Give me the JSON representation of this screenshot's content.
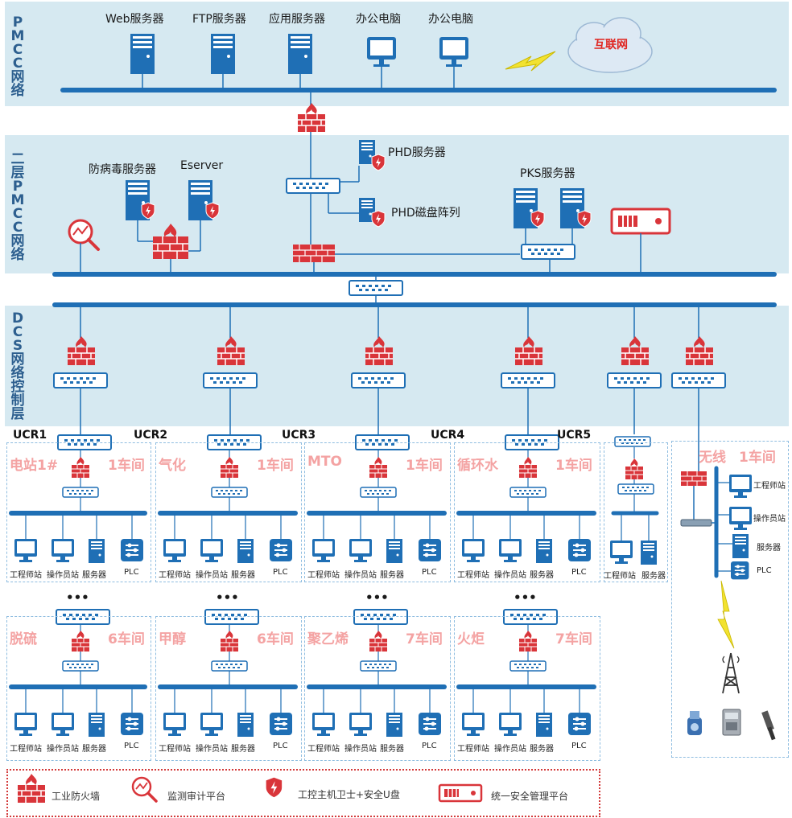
{
  "zones": {
    "pmcc": "PMCC网络",
    "l2pmcc": "二层PMCC网络",
    "dcs": "DCS网络控制层"
  },
  "top": {
    "servers": [
      "Web服务器",
      "FTP服务器",
      "应用服务器"
    ],
    "pcs": [
      "办公电脑",
      "办公电脑"
    ],
    "internet": "互联网"
  },
  "mid": {
    "antivirus": "防病毒服务器",
    "eserver": "Eserver",
    "phd_server": "PHD服务器",
    "phd_disk": "PHD磁盘阵列",
    "pks": "PKS服务器"
  },
  "ucr": [
    "UCR1",
    "UCR2",
    "UCR3",
    "UCR4",
    "UCR5"
  ],
  "units_row1": [
    {
      "name": "电站1#",
      "room": "1车间"
    },
    {
      "name": "气化",
      "room": "1车间"
    },
    {
      "name": "MTO",
      "room": "1车间"
    },
    {
      "name": "循环水",
      "room": "1车间"
    }
  ],
  "units_row2": [
    {
      "name": "脱硫",
      "room": "6车间"
    },
    {
      "name": "甲醇",
      "room": "6车间"
    },
    {
      "name": "聚乙烯",
      "room": "7车间"
    },
    {
      "name": "火炬",
      "room": "7车间"
    }
  ],
  "devices": {
    "engineer": "工程师站",
    "operator": "操作员站",
    "server": "服务器",
    "plc": "PLC"
  },
  "wireless": {
    "title": "无线",
    "room": "1车间",
    "engineer": "工程师站",
    "operator": "操作员站",
    "server": "服务器",
    "plc": "PLC"
  },
  "dots": "•••",
  "legend": {
    "firewall": "工业防火墙",
    "audit": "监测审计平台",
    "guard": "工控主机卫士+安全U盘",
    "mgmt": "统一安全管理平台"
  },
  "colors": {
    "band": "#d6e9f1",
    "device_blue": "#1f6fb5",
    "firewall_red": "#d9353a",
    "pink_label": "#f4a3a3"
  }
}
